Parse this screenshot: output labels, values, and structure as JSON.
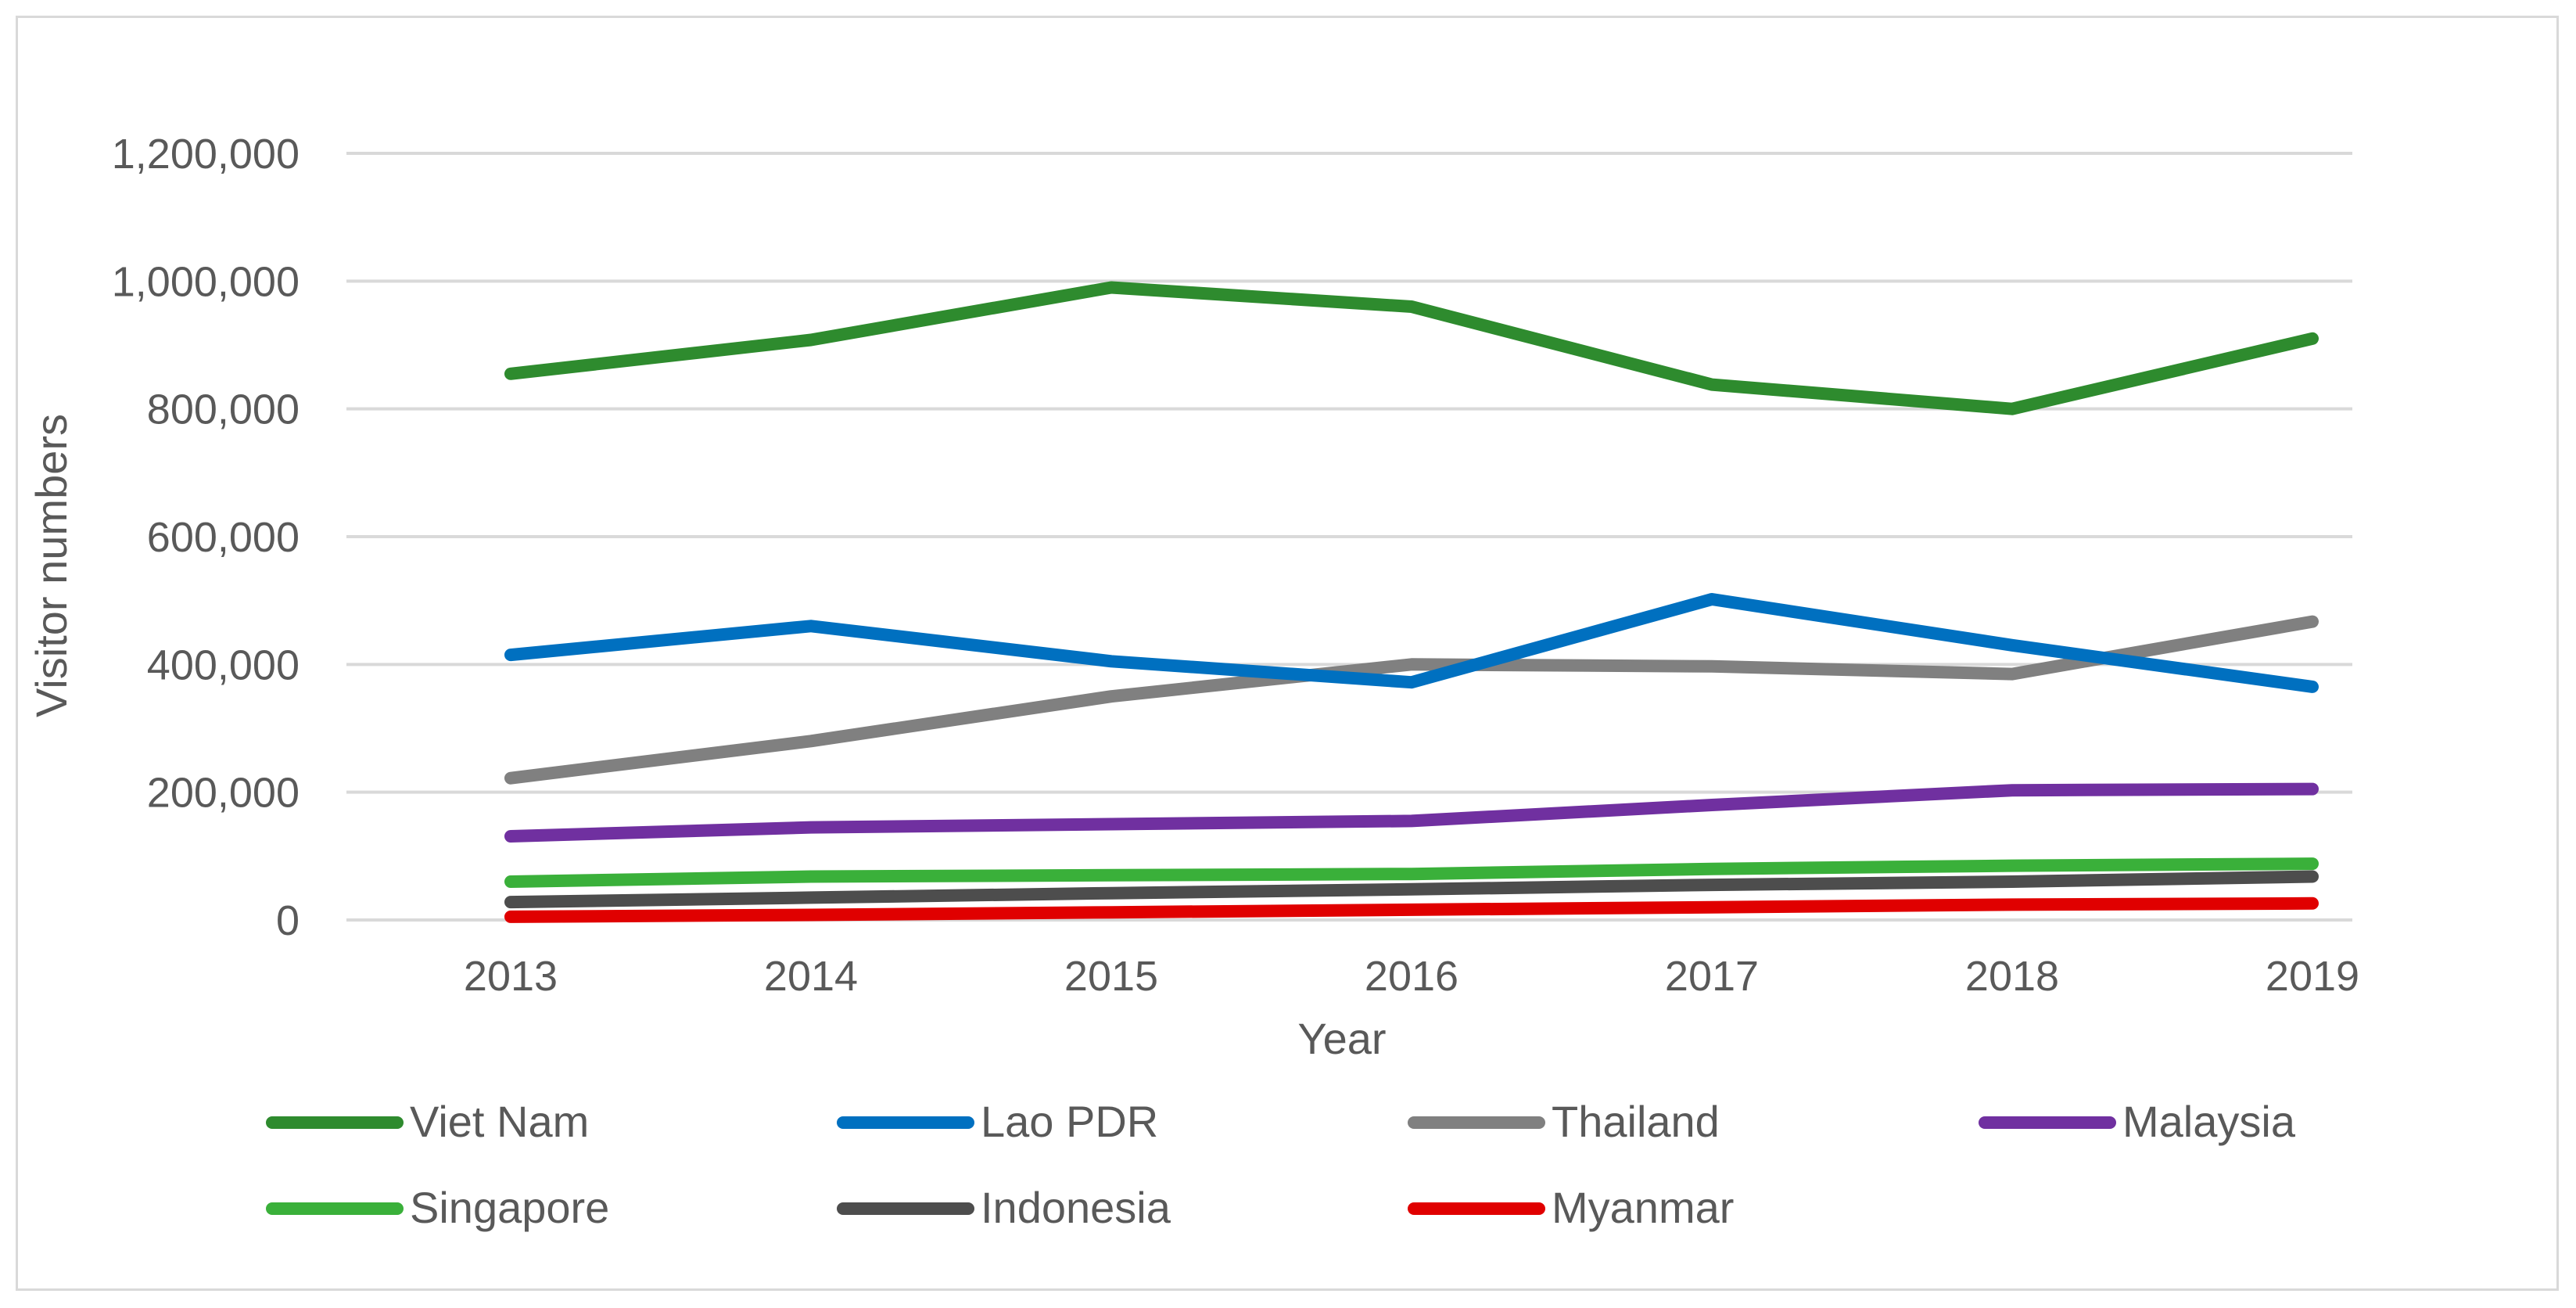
{
  "chart_data": {
    "type": "line",
    "title": "",
    "xlabel": "Year",
    "ylabel": "Visitor numbers",
    "x": [
      "2013",
      "2014",
      "2015",
      "2016",
      "2017",
      "2018",
      "2019"
    ],
    "ylim": [
      0,
      1200000
    ],
    "yticks": [
      0,
      200000,
      400000,
      600000,
      800000,
      1000000,
      1200000
    ],
    "ytick_labels": [
      "0",
      "200,000",
      "400,000",
      "600,000",
      "800,000",
      "1,000,000",
      "1,200,000"
    ],
    "grid": "horizontal",
    "legend_position": "bottom",
    "series": [
      {
        "name": "Viet Nam",
        "color": "#2e8b2e",
        "values": [
          855000,
          908000,
          990000,
          960000,
          838000,
          800000,
          910000
        ]
      },
      {
        "name": "Lao PDR",
        "color": "#0070c0",
        "values": [
          415000,
          460000,
          405000,
          372000,
          502000,
          430000,
          365000
        ]
      },
      {
        "name": "Thailand",
        "color": "#808080",
        "values": [
          222000,
          280000,
          350000,
          400000,
          397000,
          385000,
          467000
        ]
      },
      {
        "name": "Malaysia",
        "color": "#7030a0",
        "values": [
          131000,
          145000,
          150000,
          155000,
          180000,
          203000,
          205000
        ]
      },
      {
        "name": "Singapore",
        "color": "#3ab03a",
        "values": [
          60000,
          68000,
          70000,
          72000,
          80000,
          85000,
          88000
        ]
      },
      {
        "name": "Indonesia",
        "color": "#4d4d4d",
        "values": [
          28000,
          35000,
          42000,
          48000,
          55000,
          60000,
          68000
        ]
      },
      {
        "name": "Myanmar",
        "color": "#e00000",
        "values": [
          5000,
          8000,
          12000,
          16000,
          20000,
          24000,
          26000
        ]
      }
    ]
  }
}
